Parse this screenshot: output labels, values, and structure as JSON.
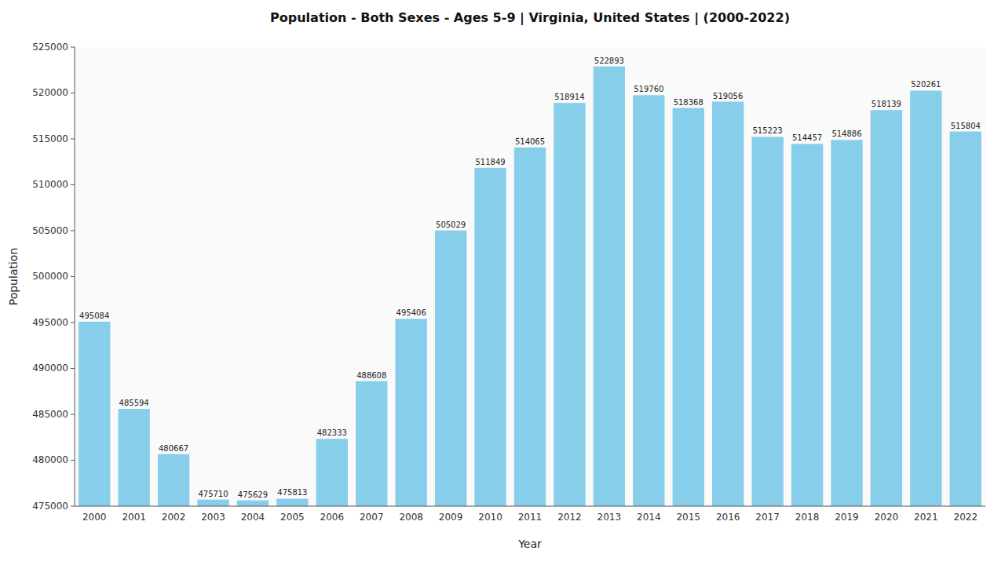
{
  "chart_data": {
    "type": "bar",
    "title": "Population - Both Sexes - Ages 5-9 | Virginia, United States |  (2000-2022)",
    "xlabel": "Year",
    "ylabel": "Population",
    "categories": [
      "2000",
      "2001",
      "2002",
      "2003",
      "2004",
      "2005",
      "2006",
      "2007",
      "2008",
      "2009",
      "2010",
      "2011",
      "2012",
      "2013",
      "2014",
      "2015",
      "2016",
      "2017",
      "2018",
      "2019",
      "2020",
      "2021",
      "2022"
    ],
    "values": [
      495084,
      485594,
      480667,
      475710,
      475629,
      475813,
      482333,
      488608,
      495406,
      505029,
      511849,
      514065,
      518914,
      522893,
      519760,
      518368,
      519056,
      515223,
      514457,
      514886,
      518139,
      520261,
      515804
    ],
    "color": "#87CEEB",
    "ylim": [
      475000,
      525000
    ],
    "yticks": [
      475000,
      480000,
      485000,
      490000,
      495000,
      500000,
      505000,
      510000,
      515000,
      520000,
      525000
    ],
    "grid": false,
    "data_labels": true
  }
}
